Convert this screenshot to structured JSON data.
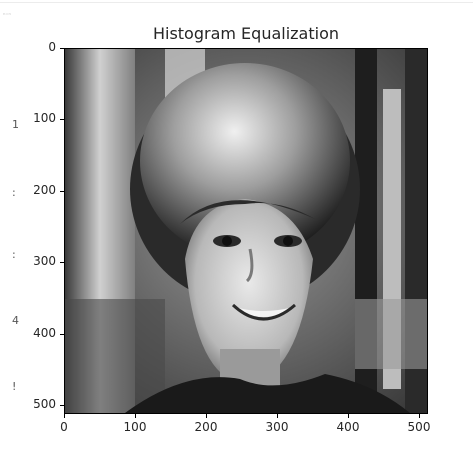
{
  "figure": {
    "title": "Histogram Equalization",
    "corner_text": "ⁿ⁼ⁿ",
    "gutter_marks": [
      "1",
      ":",
      ":",
      "4",
      "!"
    ],
    "colors": {
      "frame": "#000000",
      "text": "#262626"
    }
  },
  "chart_data": {
    "type": "image",
    "title": "Histogram Equalization",
    "x_ticks": [
      0,
      100,
      200,
      300,
      400,
      500
    ],
    "y_ticks": [
      0,
      100,
      200,
      300,
      400,
      500
    ],
    "xlim": [
      0,
      512
    ],
    "ylim": [
      512,
      0
    ],
    "colormap": "gray"
  }
}
